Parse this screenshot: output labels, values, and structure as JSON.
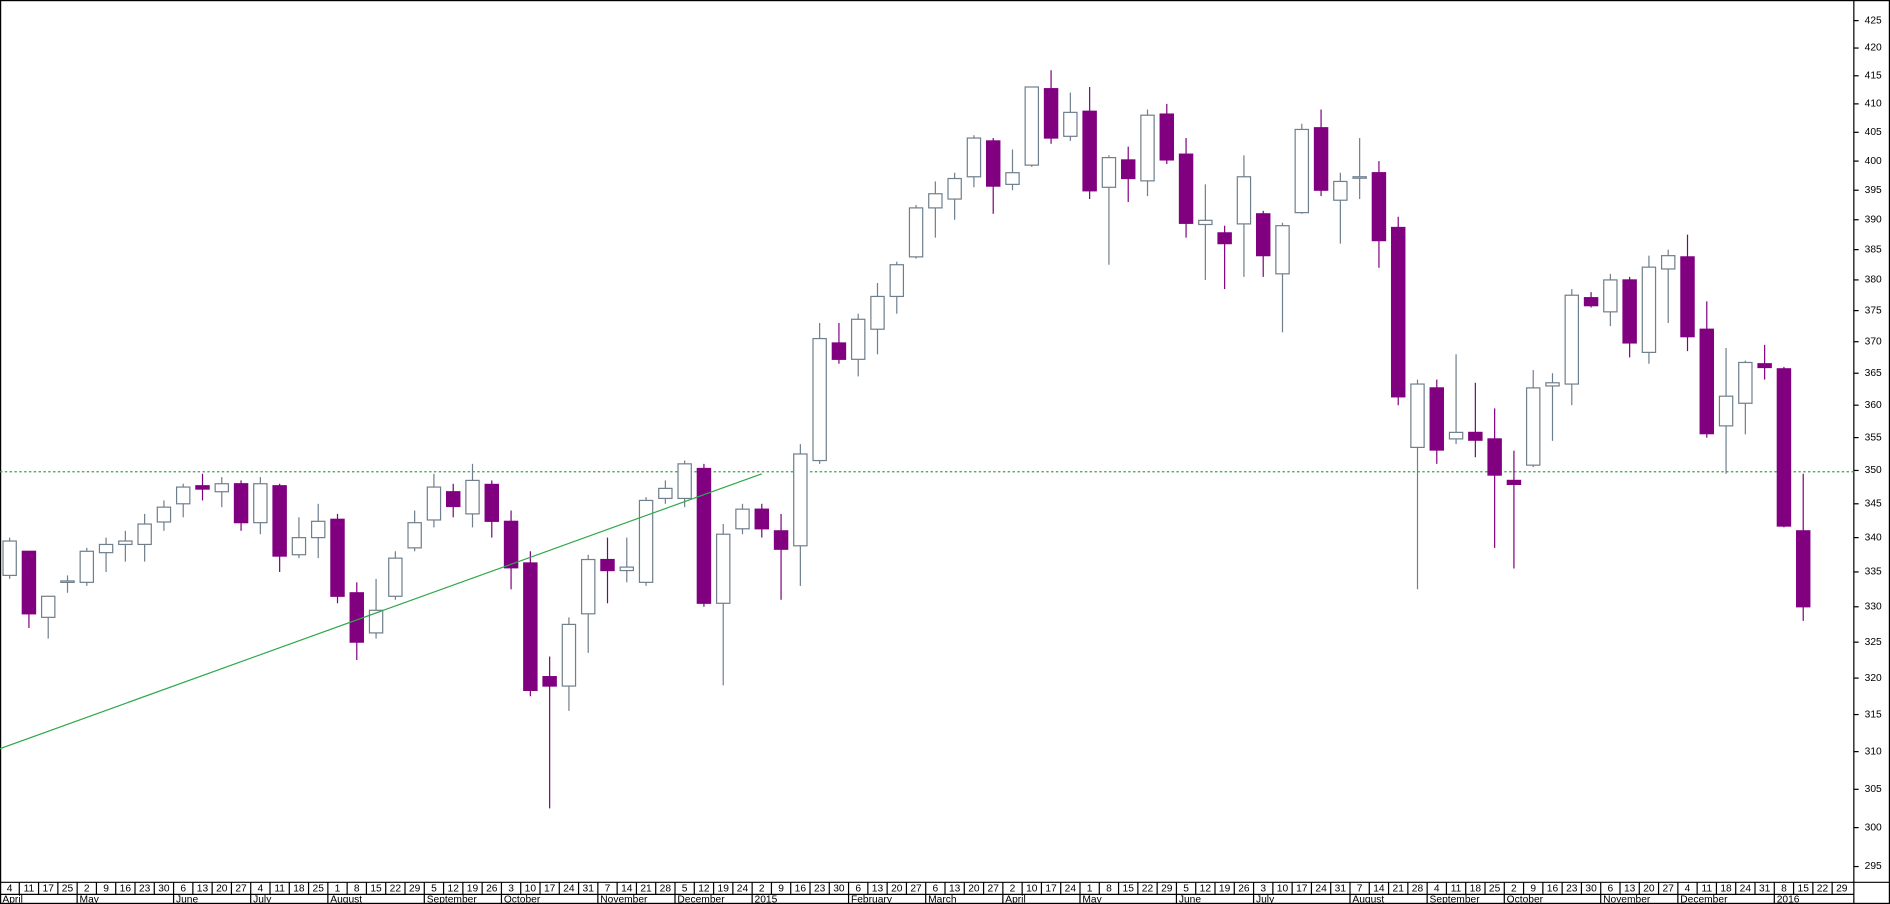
{
  "chart_data": {
    "type": "candlestick",
    "log_scale": true,
    "grid": false,
    "up_color": "#ffffff",
    "up_stroke": "#6f7f8c",
    "down_color": "#800080",
    "categories": [
      "4",
      "11",
      "17",
      "25",
      "2",
      "9",
      "16",
      "23",
      "30",
      "6",
      "13",
      "20",
      "27",
      "4",
      "11",
      "18",
      "25",
      "1",
      "8",
      "15",
      "22",
      "29",
      "5",
      "12",
      "19",
      "26",
      "3",
      "10",
      "17",
      "24",
      "31",
      "7",
      "14",
      "21",
      "28",
      "5",
      "12",
      "19",
      "24",
      "2",
      "9",
      "16",
      "23",
      "30",
      "6",
      "13",
      "20",
      "27",
      "6",
      "13",
      "20",
      "27",
      "2",
      "10",
      "17",
      "24",
      "1",
      "8",
      "15",
      "22",
      "29",
      "5",
      "12",
      "19",
      "26",
      "3",
      "10",
      "17",
      "24",
      "31",
      "7",
      "14",
      "21",
      "28",
      "4",
      "11",
      "18",
      "25",
      "2",
      "9",
      "16",
      "23",
      "30",
      "6",
      "13",
      "20",
      "27",
      "4",
      "11",
      "18",
      "24",
      "31",
      "8",
      "15",
      "22",
      "29"
    ],
    "months": [
      "April",
      null,
      null,
      null,
      "May",
      null,
      null,
      null,
      null,
      "June",
      null,
      null,
      null,
      "July",
      null,
      null,
      null,
      "August",
      null,
      null,
      null,
      null,
      "September",
      null,
      null,
      null,
      "October",
      null,
      null,
      null,
      null,
      "November",
      null,
      null,
      null,
      "December",
      null,
      null,
      null,
      "2015",
      null,
      null,
      null,
      null,
      "February",
      null,
      null,
      null,
      "March",
      null,
      null,
      null,
      "April",
      null,
      null,
      null,
      "May",
      null,
      null,
      null,
      null,
      "June",
      null,
      null,
      null,
      "July",
      null,
      null,
      null,
      null,
      "August",
      null,
      null,
      null,
      "September",
      null,
      null,
      null,
      "October",
      null,
      null,
      null,
      null,
      "November",
      null,
      null,
      null,
      "December",
      null,
      null,
      null,
      null,
      "2016",
      null,
      null,
      null
    ],
    "open": [
      334.5,
      338,
      328.5,
      333.5,
      333.5,
      337.8,
      339,
      339,
      342.3,
      345,
      347.7,
      346.8,
      348,
      342.2,
      347.7,
      337.5,
      340,
      342.7,
      332,
      326.3,
      331.5,
      338.5,
      342.6,
      346.8,
      343.5,
      347.9,
      342.4,
      336.3,
      320.2,
      318.9,
      329,
      336.8,
      335.2,
      333.5,
      345.8,
      345.8,
      350.3,
      330.5,
      341.3,
      344.2,
      341,
      338.8,
      351.5,
      369.8,
      367.2,
      372,
      377.3,
      383.8,
      392,
      393.5,
      397.3,
      403.5,
      396,
      399.3,
      412.7,
      404.3,
      408.7,
      395.5,
      400.2,
      396.6,
      408.2,
      401.2,
      389.2,
      387.8,
      389.3,
      391,
      381,
      391.2,
      405.8,
      393.3,
      397.1,
      398,
      388.7,
      353.5,
      362.7,
      354.8,
      355.8,
      354.8,
      348.5,
      350.8,
      363,
      363.3,
      377.1,
      374.8,
      380,
      368.3,
      381.8,
      383.8,
      372,
      356.8,
      360.3,
      366.5,
      365.7,
      341,
      null,
      null
    ],
    "high": [
      340,
      338,
      331.5,
      334.5,
      338.5,
      340,
      341,
      343.5,
      345.5,
      348,
      349.5,
      349,
      348.5,
      349,
      348,
      343,
      345,
      343.5,
      333.5,
      334,
      338,
      344,
      349.5,
      348,
      351,
      348.5,
      344,
      338,
      323,
      328.5,
      337.5,
      340,
      340,
      346,
      348.5,
      351.5,
      351,
      342,
      345,
      345,
      343.5,
      354,
      373,
      373,
      374.5,
      379.5,
      383,
      392.5,
      396.5,
      398,
      404.5,
      404,
      402,
      413,
      416,
      412,
      413,
      401,
      402.5,
      409,
      410,
      404,
      396,
      389,
      401,
      391.5,
      389.5,
      406.5,
      409,
      398,
      404,
      400,
      390.5,
      364,
      364,
      368,
      363.5,
      359.5,
      353,
      365.5,
      365,
      378.5,
      378,
      381,
      380.5,
      384,
      385,
      387.5,
      376.5,
      369,
      367,
      369.5,
      366,
      349.5,
      null,
      null
    ],
    "low": [
      334,
      327,
      325.5,
      332,
      333,
      335,
      336.5,
      336.5,
      341,
      343,
      345.5,
      344.5,
      341,
      340.5,
      335,
      337,
      337,
      330.5,
      322.5,
      325.5,
      331,
      338,
      341.5,
      343,
      341.5,
      340,
      332.5,
      317.5,
      302.5,
      315.5,
      323.5,
      330.5,
      333.5,
      333,
      345,
      344.5,
      330,
      319,
      340.5,
      340,
      331,
      333,
      351,
      366.5,
      364.5,
      368,
      374.5,
      383.5,
      387,
      390,
      395.5,
      391,
      395,
      399,
      403,
      403.5,
      393.5,
      382.5,
      393,
      394,
      399.5,
      387,
      380,
      378.5,
      380.5,
      380.5,
      371.5,
      391,
      394,
      386,
      393.5,
      382,
      360,
      332.5,
      351,
      354,
      352,
      338.5,
      335.5,
      350.5,
      354.5,
      360,
      375.5,
      372.5,
      367.5,
      366.5,
      373,
      368.5,
      355,
      349.5,
      355.5,
      364,
      341.5,
      328,
      null,
      null
    ],
    "close": [
      339.5,
      329,
      331.5,
      333.7,
      338,
      339,
      339.5,
      342,
      344.5,
      347.5,
      347.2,
      348,
      342.2,
      348,
      337.3,
      340,
      342.4,
      331.5,
      325,
      329.5,
      337,
      342.2,
      347.5,
      344.6,
      348.5,
      342.4,
      335.6,
      318.3,
      318.9,
      327.5,
      336.8,
      335.2,
      335.7,
      345.5,
      347.3,
      351,
      330.5,
      340.5,
      344.2,
      341.3,
      338.3,
      352.5,
      370.5,
      367.2,
      373.6,
      377.3,
      382.5,
      392,
      394.4,
      397,
      404,
      395.7,
      398,
      413,
      404,
      408.5,
      394.9,
      400.6,
      397,
      408,
      400.2,
      389.4,
      389.9,
      386,
      397.3,
      384,
      389,
      405.5,
      395,
      396.5,
      397.3,
      386.5,
      361.3,
      363.3,
      353.1,
      355.8,
      354.6,
      349.3,
      347.9,
      362.7,
      363.5,
      377.5,
      375.8,
      380,
      369.8,
      382.1,
      384,
      370.8,
      355.6,
      361.4,
      366.7,
      365.9,
      341.7,
      330,
      null,
      null
    ],
    "ylim": [
      293.0,
      428.8
    ],
    "yticks": [
      295,
      300,
      305,
      310,
      315,
      320,
      325,
      330,
      335,
      340,
      345,
      350,
      355,
      360,
      365,
      370,
      375,
      380,
      385,
      390,
      395,
      400,
      405,
      410,
      415,
      420,
      425
    ],
    "trendline": {
      "color": "#2ea84a",
      "x": [
        -0.5,
        39
      ],
      "values": [
        310.4,
        349.5
      ]
    },
    "hline": {
      "color": "#2ea84a",
      "value": 349.8
    }
  }
}
